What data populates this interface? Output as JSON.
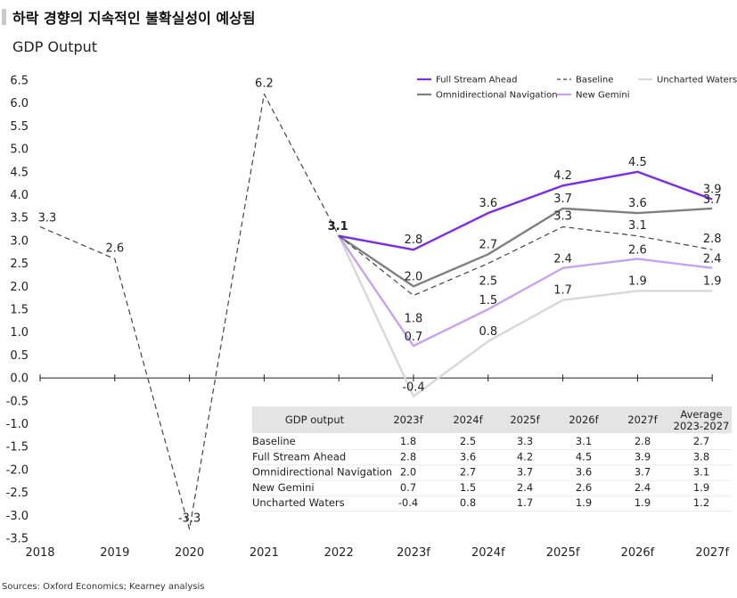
{
  "header": {
    "title": "하락 경향의 지속적인 불확실성이 예상됨",
    "subtitle": "GDP Output"
  },
  "footer": {
    "source": "Sources: Oxford Economics; Kearney analysis"
  },
  "colors": {
    "full_stream": "#7b2ee0",
    "baseline": "#444444",
    "omni": "#808080",
    "new_gemini": "#c6a3f0",
    "uncharted": "#d8d8d8",
    "table_header_bg": "#e4e4e4"
  },
  "chart_data": {
    "type": "line",
    "x": [
      "2018",
      "2019",
      "2020",
      "2021",
      "2022",
      "2023f",
      "2024f",
      "2025f",
      "2026f",
      "2027f"
    ],
    "ylim": [
      -3.5,
      6.5
    ],
    "yticks": [
      "6.5",
      "6.0",
      "5.5",
      "5.0",
      "4.5",
      "4.0",
      "3.5",
      "3.0",
      "2.5",
      "2.0",
      "1.5",
      "1.0",
      "0.5",
      "0.0",
      "-0.5",
      "-1.0",
      "-1.5",
      "-2.0",
      "-2.5",
      "-3.0",
      "-3.5"
    ],
    "grid": false,
    "legend_position": "top-right",
    "series": [
      {
        "name": "Baseline",
        "key": "baseline",
        "dash": true,
        "values": [
          3.3,
          2.6,
          -3.3,
          6.2,
          3.1,
          1.8,
          2.5,
          3.3,
          3.1,
          2.8
        ],
        "labels": [
          "3.3",
          "2.6",
          "-3.3",
          "6.2",
          "",
          "1.8",
          "2.5",
          "3.3",
          "3.1",
          "2.8"
        ]
      },
      {
        "name": "Full Stream Ahead",
        "key": "full_stream",
        "dash": false,
        "values": [
          null,
          null,
          null,
          null,
          3.1,
          2.8,
          3.6,
          4.2,
          4.5,
          3.9
        ],
        "labels": [
          "",
          "",
          "",
          "",
          "3.1",
          "2.8",
          "3.6",
          "4.2",
          "4.5",
          "3.9"
        ]
      },
      {
        "name": "Omnidirectional Navigation",
        "key": "omni",
        "dash": false,
        "values": [
          null,
          null,
          null,
          null,
          3.1,
          2.0,
          2.7,
          3.7,
          3.6,
          3.7
        ],
        "labels": [
          "",
          "",
          "",
          "",
          "",
          "2.0",
          "2.7",
          "3.7",
          "3.6",
          "3.7"
        ]
      },
      {
        "name": "New Gemini",
        "key": "new_gemini",
        "dash": false,
        "values": [
          null,
          null,
          null,
          null,
          3.1,
          0.7,
          1.5,
          2.4,
          2.6,
          2.4
        ],
        "labels": [
          "",
          "",
          "",
          "",
          "",
          "0.7",
          "1.5",
          "2.4",
          "2.6",
          "2.4"
        ]
      },
      {
        "name": "Uncharted Waters",
        "key": "uncharted",
        "dash": false,
        "values": [
          null,
          null,
          null,
          null,
          3.1,
          -0.4,
          0.8,
          1.7,
          1.9,
          1.9
        ],
        "labels": [
          "",
          "",
          "",
          "",
          "",
          "-0.4",
          "0.8",
          "1.7",
          "1.9",
          "1.9"
        ]
      }
    ],
    "table": {
      "headers": [
        "GDP output",
        "2023f",
        "2024f",
        "2025f",
        "2026f",
        "2027f",
        "Average",
        "2023-2027"
      ],
      "rows": [
        [
          "Baseline",
          "1.8",
          "2.5",
          "3.3",
          "3.1",
          "2.8",
          "2.7"
        ],
        [
          "Full Stream Ahead",
          "2.8",
          "3.6",
          "4.2",
          "4.5",
          "3.9",
          "3.8"
        ],
        [
          "Omnidirectional Navigation",
          "2.0",
          "2.7",
          "3.7",
          "3.6",
          "3.7",
          "3.1"
        ],
        [
          "New Gemini",
          "0.7",
          "1.5",
          "2.4",
          "2.6",
          "2.4",
          "1.9"
        ],
        [
          "Uncharted Waters",
          "-0.4",
          "0.8",
          "1.7",
          "1.9",
          "1.9",
          "1.2"
        ]
      ]
    }
  }
}
